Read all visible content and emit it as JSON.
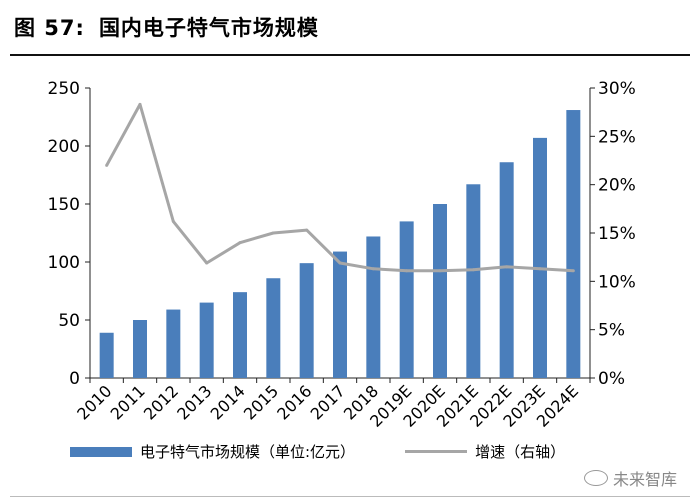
{
  "figure": {
    "number_label": "图 57:",
    "title": "国内电子特气市场规模"
  },
  "legend": {
    "bar_label": "电子特气市场规模（单位:亿元）",
    "line_label": "增速（右轴）"
  },
  "watermark": "未来智库",
  "colors": {
    "bar": "#4A7EBB",
    "line": "#A6A6A6"
  },
  "chart_data": {
    "type": "bar",
    "title": "国内电子特气市场规模",
    "categories": [
      "2010",
      "2011",
      "2012",
      "2013",
      "2014",
      "2015",
      "2016",
      "2017",
      "2018",
      "2019E",
      "2020E",
      "2021E",
      "2022E",
      "2023E",
      "2024E"
    ],
    "series": [
      {
        "name": "电子特气市场规模（单位:亿元）",
        "type": "bar",
        "axis": "left",
        "values": [
          39,
          50,
          59,
          65,
          74,
          86,
          99,
          109,
          122,
          135,
          150,
          167,
          186,
          207,
          231
        ]
      },
      {
        "name": "增速（右轴）",
        "type": "line",
        "axis": "right",
        "values": [
          22.0,
          28.3,
          16.2,
          11.9,
          14.0,
          15.0,
          15.3,
          11.9,
          11.3,
          11.1,
          11.1,
          11.2,
          11.5,
          11.3,
          11.1
        ]
      }
    ],
    "ylim": [
      0,
      250
    ],
    "yticks": [
      "0",
      "50",
      "100",
      "150",
      "200",
      "250"
    ],
    "y2lim": [
      0,
      30
    ],
    "y2ticks": [
      "0%",
      "5%",
      "10%",
      "15%",
      "20%",
      "25%",
      "30%"
    ],
    "xlabel": "",
    "ylabel": "",
    "y2label": ""
  }
}
